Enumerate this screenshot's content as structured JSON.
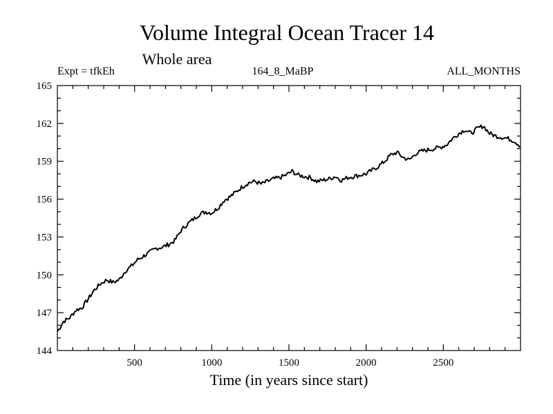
{
  "chart_data": {
    "type": "line",
    "title": "Volume Integral Ocean Tracer 14",
    "subtitle": "Whole area",
    "annotation_left": "Expt = tfkEh",
    "annotation_center": "164_8_MaBP",
    "annotation_right": "ALL_MONTHS",
    "xlabel": "Time (in years since start)",
    "ylabel": "",
    "xlim": [
      0,
      3000
    ],
    "ylim": [
      144,
      165
    ],
    "xticks": [
      500,
      1000,
      1500,
      2000,
      2500
    ],
    "yticks": [
      144,
      147,
      150,
      153,
      156,
      159,
      162,
      165
    ],
    "grid": false,
    "series": [
      {
        "x": [
          0,
          40,
          80,
          120,
          160,
          200,
          240,
          280,
          320,
          360,
          400,
          440,
          480,
          520,
          560,
          600,
          640,
          680,
          720,
          760,
          800,
          840,
          880,
          920,
          960,
          1000,
          1040,
          1080,
          1120,
          1160,
          1200,
          1240,
          1280,
          1320,
          1360,
          1400,
          1440,
          1480,
          1520,
          1560,
          1600,
          1640,
          1680,
          1720,
          1760,
          1800,
          1840,
          1880,
          1920,
          1960,
          2000,
          2040,
          2080,
          2120,
          2160,
          2200,
          2240,
          2280,
          2320,
          2360,
          2400,
          2440,
          2480,
          2520,
          2560,
          2600,
          2640,
          2680,
          2720,
          2760,
          2800,
          2840,
          2880,
          2920,
          2960,
          3000
        ],
        "values": [
          145.5,
          146.3,
          146.6,
          147.2,
          147.4,
          148.1,
          148.8,
          149.3,
          149.6,
          149.4,
          149.6,
          150.3,
          150.7,
          151.2,
          151.5,
          151.8,
          152.1,
          152.2,
          152.4,
          152.7,
          153.5,
          154.0,
          154.4,
          154.8,
          155.0,
          154.9,
          155.3,
          155.9,
          156.2,
          156.6,
          157.0,
          157.3,
          157.4,
          157.2,
          157.4,
          157.6,
          157.7,
          157.9,
          158.2,
          157.9,
          157.8,
          157.7,
          157.4,
          157.5,
          157.6,
          157.8,
          157.5,
          157.7,
          157.8,
          157.9,
          158.0,
          158.3,
          158.6,
          159.0,
          159.5,
          159.7,
          159.3,
          159.1,
          159.6,
          159.8,
          159.9,
          160.0,
          160.1,
          160.3,
          160.8,
          161.2,
          161.5,
          161.2,
          161.6,
          161.8,
          161.2,
          161.0,
          160.9,
          160.8,
          160.6,
          160.2
        ]
      }
    ]
  }
}
